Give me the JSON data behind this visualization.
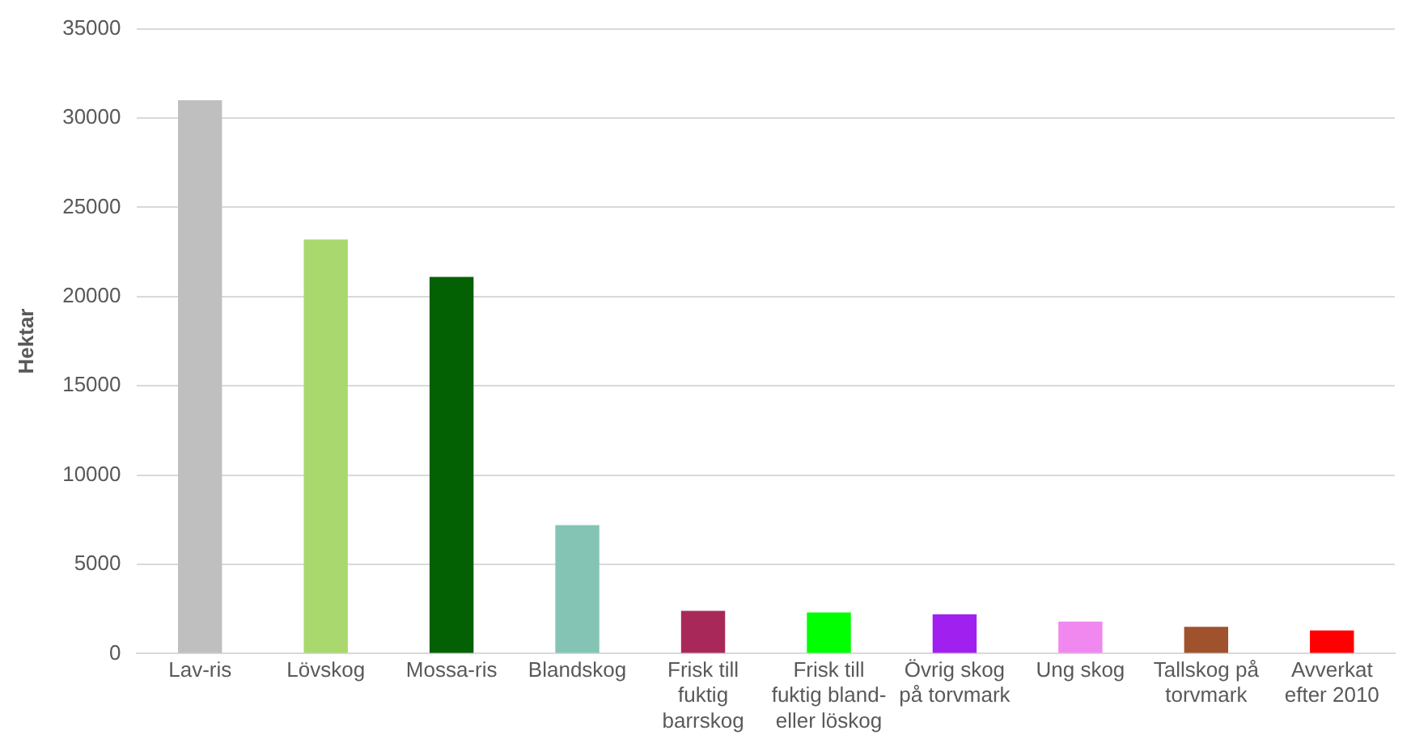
{
  "chart_data": {
    "type": "bar",
    "ylabel": "Hektar",
    "categories": [
      "Lav-ris",
      "Lövskog",
      "Mossa-ris",
      "Blandskog",
      "Frisk till fuktig barrskog",
      "Frisk till fuktig bland- eller löskog",
      "Övrig skog på torvmark",
      "Ung skog",
      "Tallskog på torvmark",
      "Avverkat efter 2010"
    ],
    "values": [
      31000,
      23200,
      21100,
      7200,
      2400,
      2300,
      2200,
      1800,
      1500,
      1300
    ],
    "colors": [
      "#bfbfbf",
      "#a9d86e",
      "#036003",
      "#84c4b4",
      "#a9285a",
      "#00ff00",
      "#a020f0",
      "#f088f0",
      "#a0522d",
      "#ff0000"
    ],
    "ylim": [
      0,
      35000
    ],
    "yticks": [
      0,
      5000,
      10000,
      15000,
      20000,
      25000,
      30000,
      35000
    ],
    "grid": "y",
    "legend": false
  }
}
